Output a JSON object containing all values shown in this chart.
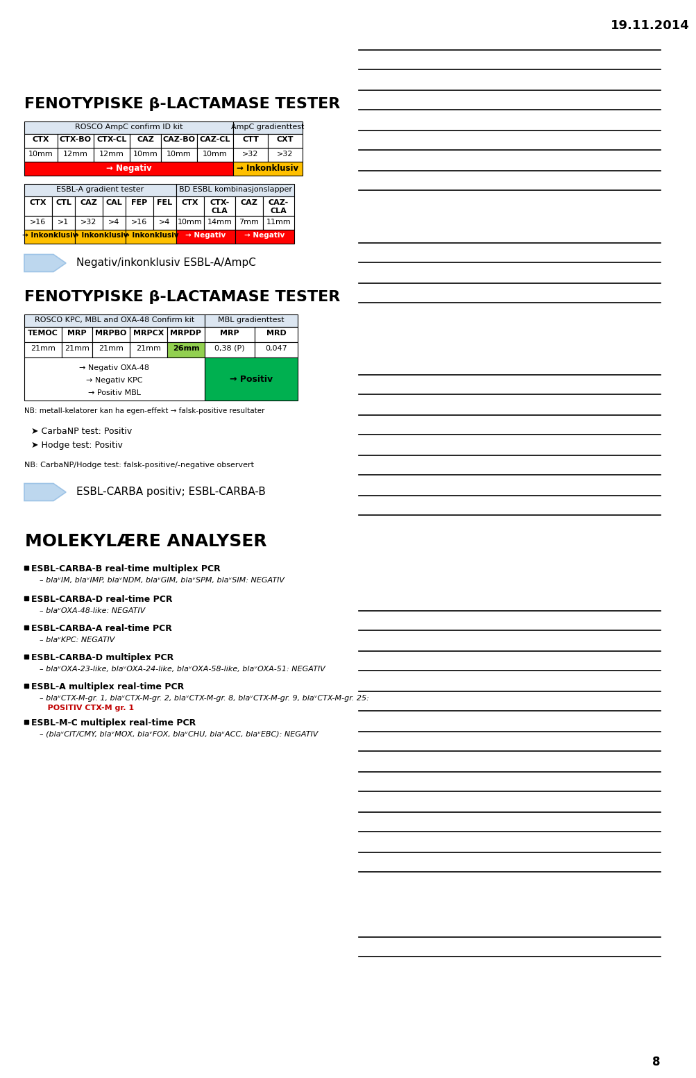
{
  "date": "19.11.2014",
  "page_num": "8",
  "bg_color": "#ffffff",
  "section1_title": "FENOTYPISKE β-LACTAMASE TESTER",
  "section2_title": "FENOTYPISKE β-LACTAMASE TESTER",
  "table1_header1": "ROSCO AmpC confirm ID kit",
  "table1_header2": "AmpC gradienttest",
  "table1_row1": [
    "CTX",
    "CTX-BO",
    "CTX-CL",
    "CAZ",
    "CAZ-BO",
    "CAZ-CL",
    "CTT",
    "CXT"
  ],
  "table1_row2": [
    "10mm",
    "12mm",
    "12mm",
    "10mm",
    "10mm",
    "10mm",
    ">32",
    ">32"
  ],
  "table1_row3_left": "→ Negativ",
  "table1_row3_right": "→ Inkonklusiv",
  "table1_row3_left_color": "#ff0000",
  "table1_row3_right_color": "#ffc000",
  "table2_header1": "ESBL-A gradient tester",
  "table2_header2": "BD ESBL kombinasjonslapper",
  "table2_row1": [
    "CTX",
    "CTL",
    "CAZ",
    "CAL",
    "FEP",
    "FEL",
    "CTX",
    "CTX-\nCLA",
    "CAZ",
    "CAZ-\nCLA"
  ],
  "table2_row2": [
    ">16",
    ">1",
    ">32",
    ">4",
    ">16",
    ">4",
    "10mm",
    "14mm",
    "7mm",
    "11mm"
  ],
  "table2_row3_col1": "→ Inkonklusiv",
  "table2_row3_col2": "→ Inkonklusiv",
  "table2_row3_col3": "→ Inkonklusiv",
  "table2_row3_col4": "→ Negativ",
  "table2_row3_col5": "→ Negativ",
  "table2_row3_color_left": "#ffc000",
  "table2_row3_color_right": "#ff0000",
  "arrow1_text": "Negativ/inkonklusiv ESBL-A/AmpC",
  "table3_header1": "ROSCO KPC, MBL and OXA-48 Confirm kit",
  "table3_header2": "MBL gradienttest",
  "table3_row1": [
    "TEMOC",
    "MRP",
    "MRPBO",
    "MRPCX",
    "MRPDP",
    "MRP",
    "MRD"
  ],
  "table3_row2": [
    "21mm",
    "21mm",
    "21mm",
    "21mm",
    "26mm",
    "0,38 (P)",
    "0,047"
  ],
  "table3_mrpdp_color": "#92d050",
  "table3_row3_left": "→ Negativ OXA-48\n→ Negativ KPC\n→ Positiv MBL",
  "table3_row3_right": "→ Positiv",
  "table3_row3_right_color": "#00b050",
  "nb1": "NB: metall-kelatorer kan ha egen-effekt → falsk-positive resultater",
  "carbanp_text": "➤ CarbaNP test: Positiv",
  "hodge_text": "➤ Hodge test: Positiv",
  "nb2": "NB: CarbaNP/Hodge test: falsk-positive/-negative observert",
  "arrow2_text": "ESBL-CARBA positiv; ESBL-CARBA-B",
  "mol_title": "MOLEKYLÆRE ANALYSER",
  "bullet1_title": "ESBL-CARBA-B real-time multiplex PCR",
  "bullet1_sub": "blaᵛIM, blaᵛIMP, blaᵛNDM, blaᵛGIM, blaᵛSPM, blaᵛSIM: NEGATIV",
  "bullet2_title": "ESBL-CARBA-D real-time PCR",
  "bullet2_sub": "blaᵛOXA-48-like: NEGATIV",
  "bullet3_title": "ESBL-CARBA-A real-time PCR",
  "bullet3_sub": "blaᵛKPC: NEGATIV",
  "bullet4_title": "ESBL-CARBA-D multiplex PCR",
  "bullet4_sub": "blaᵛOXA-23-like, blaᵛOXA-24-like, blaᵛOXA-58-like, blaᵛOXA-51: NEGATIV",
  "bullet5_title": "ESBL-A multiplex real-time PCR",
  "bullet5_sub_normal": "blaᵛCTX-M-gr. 1, blaᵛCTX-M-gr. 2, blaᵛCTX-M-gr. 8, blaᵛCTX-M-gr. 9, blaᵛCTX-M-gr. 25: ",
  "bullet5_sub_highlight": "POSITIV CTX-M gr. 1",
  "bullet6_title": "ESBL-M-C multiplex real-time PCR",
  "bullet6_sub": "(blaᵛCIT/CMY, blaᵛMOX, blaᵛFOX, blaᵛCHU, blaᵛACC, blaᵛEBC): NEGATIV"
}
